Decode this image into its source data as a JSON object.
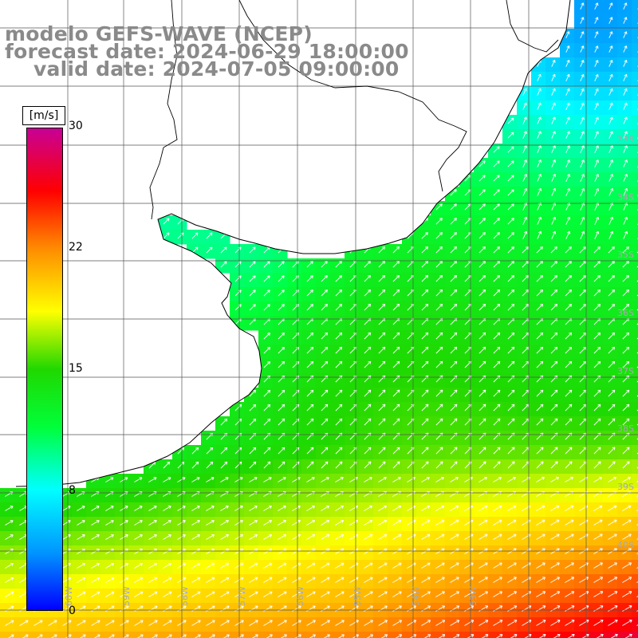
{
  "title": {
    "line1": "modelo GEFS-WAVE (NCEP)",
    "line2": "forecast date: 2024-06-29 18:00:00",
    "line3": "valid date: 2024-07-05 09:00:00"
  },
  "colorbar": {
    "unit": "[m/s]",
    "ticks": [
      "30",
      "22",
      "15",
      "8",
      "0"
    ],
    "min": 0,
    "max": 30,
    "colors": [
      "#0000ff",
      "#0096ff",
      "#00ffff",
      "#00ff3a",
      "#20d800",
      "#ffff00",
      "#ff8c00",
      "#ff0000",
      "#c80096"
    ]
  },
  "map": {
    "lat_labels": [
      "33S",
      "34S",
      "35S",
      "36S",
      "37S",
      "38S",
      "39S",
      "40S"
    ],
    "lon_labels": [
      "60W",
      "59W",
      "58W",
      "57W",
      "56W",
      "55W",
      "54W",
      "53W"
    ],
    "land_color": "#ffffff",
    "grid_color": "#555555",
    "arrow_color": "#ffffff"
  }
}
